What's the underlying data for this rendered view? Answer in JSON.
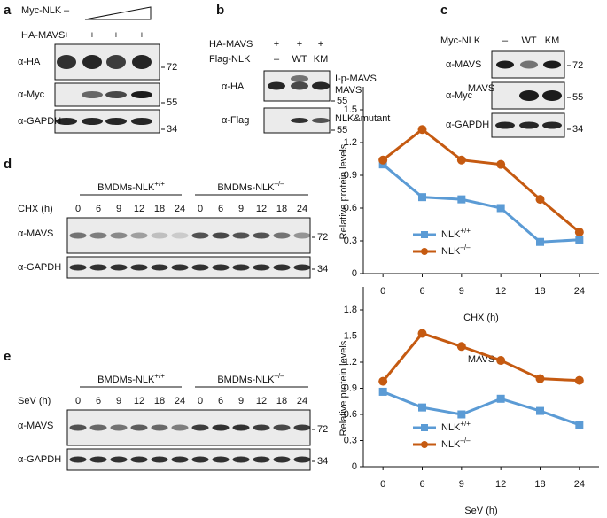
{
  "a": {
    "letter": "a",
    "myc_label": "Myc-NLK",
    "myc_lanes": [
      "–"
    ],
    "ha_label": "HA-MAVS",
    "ha_lanes": [
      "+",
      "+",
      "+",
      "+"
    ],
    "blots": [
      "α-HA",
      "α-Myc",
      "α-GAPDH"
    ],
    "markers": [
      "72",
      "55",
      "34"
    ]
  },
  "b": {
    "letter": "b",
    "rows": [
      {
        "label": "HA-MAVS",
        "lanes": [
          "+",
          "+",
          "+"
        ]
      },
      {
        "label": "Flag-NLK",
        "lanes": [
          "–",
          "WT",
          "KM"
        ]
      }
    ],
    "blots": [
      "α-HA",
      "α-Flag"
    ],
    "right": [
      "I-p-MAVS",
      "MAVS",
      "55",
      "NLK&mutant",
      "55"
    ]
  },
  "c": {
    "letter": "c",
    "row": {
      "label": "Myc-NLK",
      "lanes": [
        "–",
        "WT",
        "KM"
      ]
    },
    "blots": [
      "α-MAVS",
      "α-Myc",
      "α-GAPDH"
    ],
    "markers": [
      "72",
      "55",
      "34"
    ]
  },
  "d": {
    "letter": "d",
    "groups": [
      {
        "text": "BMDMs-NLK",
        "sup": "+/+"
      },
      {
        "text": "BMDMs-NLK",
        "sup": "–/–"
      }
    ],
    "treatment": "CHX (h)",
    "lanes": [
      "0",
      "6",
      "9",
      "12",
      "18",
      "24",
      "0",
      "6",
      "9",
      "12",
      "18",
      "24"
    ],
    "blots": [
      "α-MAVS",
      "α-GAPDH"
    ],
    "markers": [
      "72",
      "34"
    ]
  },
  "e": {
    "letter": "e",
    "groups": [
      {
        "text": "BMDMs-NLK",
        "sup": "+/+"
      },
      {
        "text": "BMDMs-NLK",
        "sup": "–/–"
      }
    ],
    "treatment": "SeV (h)",
    "lanes": [
      "0",
      "6",
      "9",
      "12",
      "18",
      "24",
      "0",
      "6",
      "9",
      "12",
      "18",
      "24"
    ],
    "blots": [
      "α-MAVS",
      "α-GAPDH"
    ],
    "markers": [
      "72",
      "34"
    ]
  },
  "chart_data": [
    {
      "type": "line",
      "title": "MAVS",
      "y_label": "Relative protein levels",
      "x_label": "CHX (h)",
      "categories": [
        "0",
        "6",
        "9",
        "12",
        "18",
        "24"
      ],
      "ylim": [
        0,
        1.5
      ],
      "yticks": [
        0,
        0.3,
        0.6,
        0.9,
        1.2,
        1.5
      ],
      "legend": "lower left",
      "series": [
        {
          "name": "NLK",
          "superscript": "+/+",
          "color": "#5b9bd5",
          "marker": "square",
          "values": [
            1.0,
            0.7,
            0.68,
            0.6,
            0.29,
            0.31
          ]
        },
        {
          "name": "NLK",
          "superscript": "–/–",
          "color": "#c55a11",
          "marker": "circle",
          "values": [
            1.04,
            1.32,
            1.04,
            1.0,
            0.68,
            0.38
          ]
        }
      ]
    },
    {
      "type": "line",
      "title": "MAVS",
      "y_label": "Relative protein levels",
      "x_label": "SeV (h)",
      "categories": [
        "0",
        "6",
        "9",
        "12",
        "18",
        "24"
      ],
      "ylim": [
        0,
        1.8
      ],
      "yticks": [
        0,
        0.3,
        0.6,
        0.9,
        1.2,
        1.5,
        1.8
      ],
      "legend": "lower left",
      "series": [
        {
          "name": "NLK",
          "superscript": "+/+",
          "color": "#5b9bd5",
          "marker": "square",
          "values": [
            0.86,
            0.68,
            0.6,
            0.78,
            0.64,
            0.48
          ]
        },
        {
          "name": "NLK",
          "superscript": "–/–",
          "color": "#c55a11",
          "marker": "circle",
          "values": [
            0.98,
            1.53,
            1.38,
            1.22,
            1.01,
            0.99
          ]
        }
      ]
    }
  ]
}
